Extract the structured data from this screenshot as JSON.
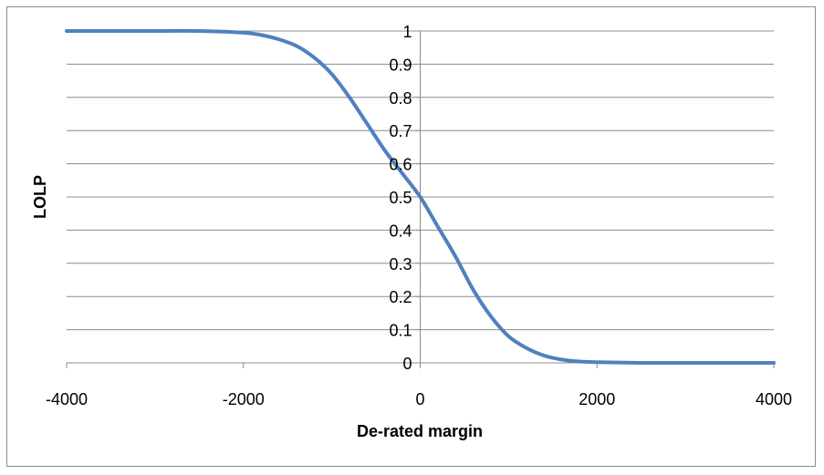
{
  "chart_data": {
    "type": "line",
    "title": "",
    "xlabel": "De-rated margin",
    "ylabel": "LOLP",
    "xlim": [
      -4000,
      4000
    ],
    "ylim": [
      0,
      1
    ],
    "x_ticks": [
      -4000,
      -2000,
      0,
      2000,
      4000
    ],
    "y_ticks": [
      0,
      0.1,
      0.2,
      0.3,
      0.4,
      0.5,
      0.6,
      0.7,
      0.8,
      0.9,
      1
    ],
    "x_tick_labels": [
      "-4000",
      "-2000",
      "0",
      "2000",
      "4000"
    ],
    "y_tick_labels": [
      "0",
      "0.1",
      "0.2",
      "0.3",
      "0.4",
      "0.5",
      "0.6",
      "0.7",
      "0.8",
      "0.9",
      "1"
    ],
    "grid": "horizontal",
    "legend": "none",
    "series": [
      {
        "color": "#4f81bd",
        "x": [
          -4000,
          -3000,
          -2500,
          -2000,
          -1800,
          -1600,
          -1400,
          -1200,
          -1000,
          -800,
          -600,
          -400,
          -200,
          0,
          200,
          400,
          600,
          800,
          1000,
          1200,
          1400,
          1600,
          1800,
          2000,
          2500,
          3000,
          4000
        ],
        "y": [
          1.0,
          1.0,
          1.0,
          0.995,
          0.988,
          0.975,
          0.955,
          0.92,
          0.87,
          0.8,
          0.72,
          0.64,
          0.57,
          0.5,
          0.41,
          0.32,
          0.22,
          0.14,
          0.08,
          0.045,
          0.022,
          0.01,
          0.004,
          0.002,
          0.0,
          0.0,
          0.0
        ]
      }
    ]
  }
}
